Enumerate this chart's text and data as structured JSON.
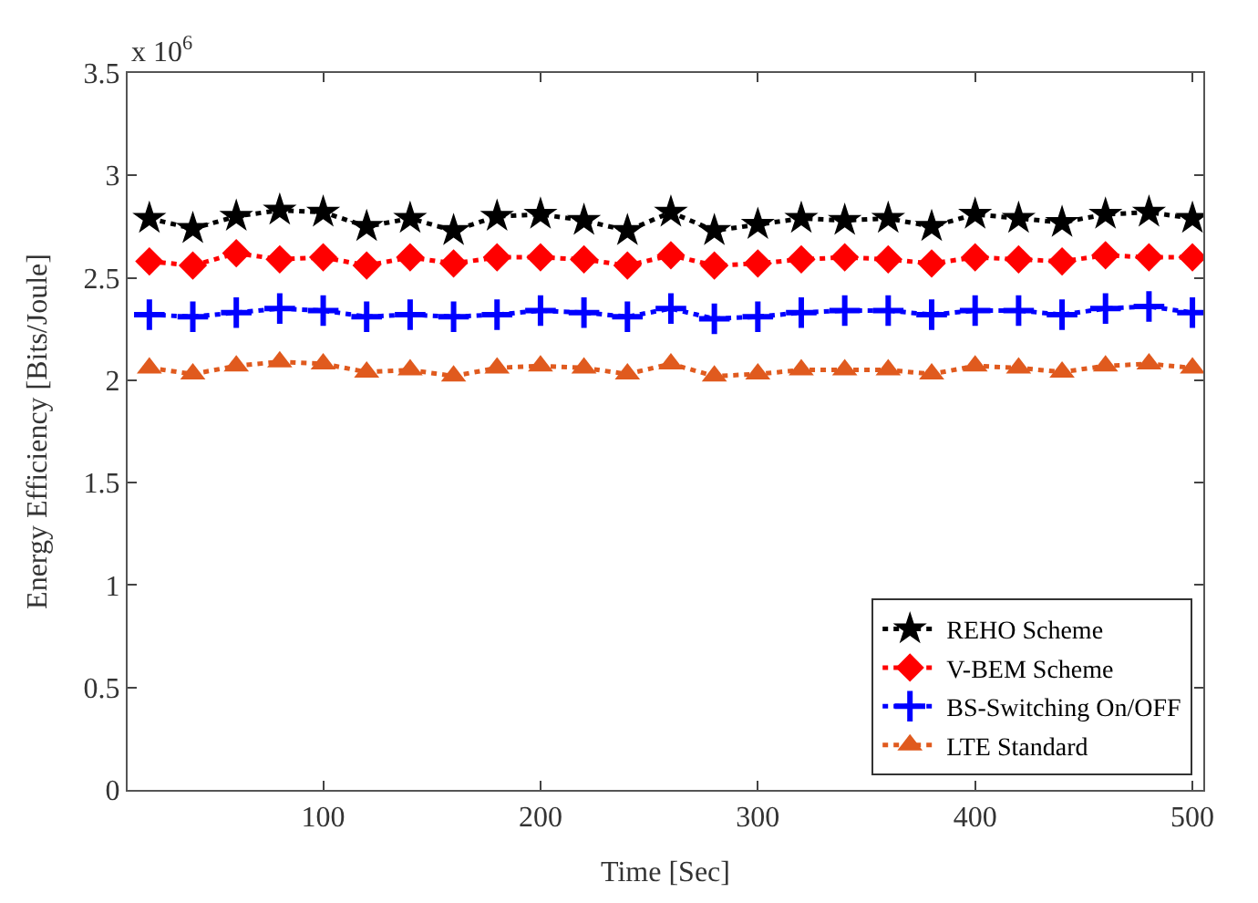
{
  "chart_data": {
    "type": "line",
    "xlabel": "Time [Sec]",
    "ylabel": "Energy Efficiency [Bits/Joule]",
    "annotations": [
      "x 10$^{6}$"
    ],
    "x": [
      20,
      40,
      60,
      80,
      100,
      120,
      140,
      160,
      180,
      200,
      220,
      240,
      260,
      280,
      300,
      320,
      340,
      360,
      380,
      400,
      420,
      440,
      460,
      480,
      500
    ],
    "series": [
      {
        "name": "REHO Scheme",
        "color": "#000000",
        "marker": "star",
        "values": [
          2.79,
          2.74,
          2.8,
          2.83,
          2.82,
          2.75,
          2.79,
          2.73,
          2.8,
          2.81,
          2.78,
          2.73,
          2.82,
          2.73,
          2.76,
          2.79,
          2.78,
          2.79,
          2.75,
          2.81,
          2.79,
          2.77,
          2.81,
          2.82,
          2.79
        ]
      },
      {
        "name": "V-BEM Scheme",
        "color": "#ff0000",
        "marker": "diamond",
        "values": [
          2.58,
          2.56,
          2.62,
          2.59,
          2.6,
          2.56,
          2.6,
          2.57,
          2.6,
          2.6,
          2.59,
          2.56,
          2.61,
          2.56,
          2.57,
          2.59,
          2.6,
          2.59,
          2.57,
          2.6,
          2.59,
          2.58,
          2.61,
          2.6,
          2.6
        ]
      },
      {
        "name": "BS-Switching On/OFF",
        "color": "#0000ff",
        "marker": "cross",
        "values": [
          2.32,
          2.31,
          2.33,
          2.35,
          2.34,
          2.31,
          2.32,
          2.31,
          2.32,
          2.34,
          2.33,
          2.31,
          2.35,
          2.3,
          2.31,
          2.33,
          2.34,
          2.34,
          2.32,
          2.34,
          2.34,
          2.32,
          2.35,
          2.36,
          2.33
        ]
      },
      {
        "name": "LTE Standard",
        "color": "#e05a1e",
        "marker": "triangle",
        "values": [
          2.06,
          2.03,
          2.07,
          2.09,
          2.08,
          2.04,
          2.05,
          2.02,
          2.06,
          2.07,
          2.06,
          2.03,
          2.08,
          2.02,
          2.03,
          2.05,
          2.05,
          2.05,
          2.03,
          2.07,
          2.06,
          2.04,
          2.07,
          2.08,
          2.06
        ]
      }
    ],
    "line_style": "dotted",
    "legend": "bottom right",
    "xlim": [
      10,
      505
    ],
    "xticks": [
      100,
      200,
      300,
      400,
      500
    ],
    "ylim": [
      0,
      3.5
    ],
    "yticks": [
      0,
      0.5,
      1,
      1.5,
      2,
      2.5,
      3,
      3.5
    ]
  }
}
